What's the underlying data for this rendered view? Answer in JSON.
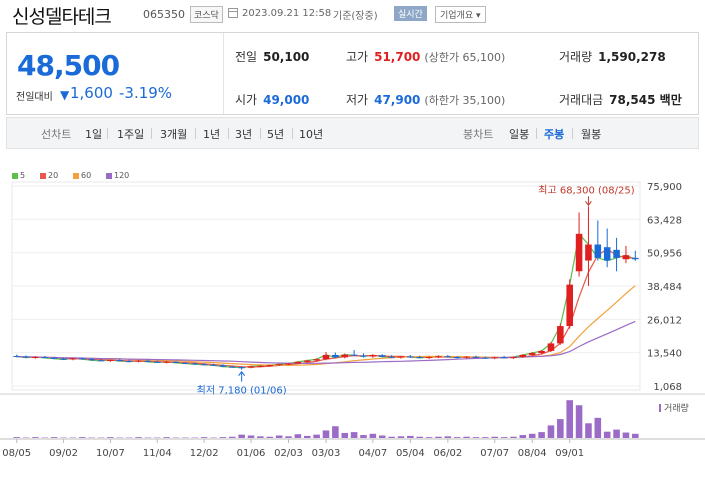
{
  "stock": {
    "name": "신성델타테크",
    "code": "065350",
    "market": "코스닥",
    "datetime": "2023.09.21 12:58",
    "basis": "기준(장중)",
    "realtime_label": "실시간",
    "company_info_label": "기업개요"
  },
  "quote": {
    "price": "48,500",
    "change_label": "전일대비",
    "change_arrow": "▼",
    "change_value": "1,600",
    "change_percent": "-3.19%",
    "prev_close_label": "전일",
    "prev_close": "50,100",
    "high_label": "고가",
    "high": "51,700",
    "upper_limit": "(상한가 65,100)",
    "volume_label": "거래량",
    "volume": "1,590,278",
    "open_label": "시가",
    "open": "49,000",
    "low_label": "저가",
    "low": "47,900",
    "lower_limit": "(하한가 35,100)",
    "amount_label": "거래대금",
    "amount": "78,545 백만"
  },
  "toolbar": {
    "line_label": "선차트",
    "periods": [
      "1일",
      "1주일",
      "3개월",
      "1년",
      "3년",
      "5년",
      "10년"
    ],
    "candle_label": "봉차트",
    "candle_types": [
      "일봉",
      "주봉",
      "월봉"
    ],
    "candle_active": "주봉"
  },
  "colors": {
    "up": "#e02020",
    "down": "#1a6ad8",
    "ma5": "#5cbf4a",
    "ma20": "#e55a4a",
    "ma60": "#f2a23c",
    "ma120": "#9b6bc7"
  },
  "chart_data": {
    "type": "candlestick",
    "moving_averages": [
      {
        "name": "5",
        "color": "#5cbf4a"
      },
      {
        "name": "20",
        "color": "#e55a4a"
      },
      {
        "name": "60",
        "color": "#f2a23c"
      },
      {
        "name": "120",
        "color": "#9b6bc7"
      }
    ],
    "y_ticks": [
      "75,900",
      "63,428",
      "50,956",
      "38,484",
      "26,012",
      "13,540",
      "1,068"
    ],
    "y_range": [
      1068,
      75900
    ],
    "x_ticks": [
      "08/05",
      "09/02",
      "10/07",
      "11/04",
      "12/02",
      "01/06",
      "02/03",
      "03/03",
      "04/07",
      "05/04",
      "06/02",
      "07/07",
      "08/04",
      "09/01"
    ],
    "high_annotation": "최고 68,300 (08/25)",
    "low_annotation": "최저 7,180 (01/06)",
    "volume_label": "거래량",
    "candles": [
      {
        "o": 12300,
        "h": 12800,
        "l": 11800,
        "c": 12100
      },
      {
        "o": 12100,
        "h": 12500,
        "l": 11500,
        "c": 11700
      },
      {
        "o": 11700,
        "h": 12200,
        "l": 11300,
        "c": 11900
      },
      {
        "o": 11900,
        "h": 12300,
        "l": 11400,
        "c": 11600
      },
      {
        "o": 11600,
        "h": 12000,
        "l": 11100,
        "c": 11300
      },
      {
        "o": 11300,
        "h": 11700,
        "l": 10800,
        "c": 11000
      },
      {
        "o": 11000,
        "h": 11600,
        "l": 10700,
        "c": 11400
      },
      {
        "o": 11400,
        "h": 11800,
        "l": 10900,
        "c": 11100
      },
      {
        "o": 11100,
        "h": 11500,
        "l": 10500,
        "c": 10700
      },
      {
        "o": 10700,
        "h": 11200,
        "l": 10300,
        "c": 10500
      },
      {
        "o": 10500,
        "h": 11000,
        "l": 10100,
        "c": 10800
      },
      {
        "o": 10800,
        "h": 11100,
        "l": 10300,
        "c": 10400
      },
      {
        "o": 10400,
        "h": 10900,
        "l": 10000,
        "c": 10200
      },
      {
        "o": 10200,
        "h": 10800,
        "l": 9900,
        "c": 10500
      },
      {
        "o": 10500,
        "h": 10900,
        "l": 10000,
        "c": 10100
      },
      {
        "o": 10100,
        "h": 10500,
        "l": 9700,
        "c": 9900
      },
      {
        "o": 9900,
        "h": 10400,
        "l": 9500,
        "c": 10100
      },
      {
        "o": 10100,
        "h": 10400,
        "l": 9600,
        "c": 9700
      },
      {
        "o": 9700,
        "h": 10100,
        "l": 9300,
        "c": 9500
      },
      {
        "o": 9500,
        "h": 9900,
        "l": 9000,
        "c": 9200
      },
      {
        "o": 9200,
        "h": 9600,
        "l": 8800,
        "c": 9000
      },
      {
        "o": 9000,
        "h": 9400,
        "l": 8600,
        "c": 8800
      },
      {
        "o": 8800,
        "h": 9200,
        "l": 8100,
        "c": 8300
      },
      {
        "o": 8300,
        "h": 8700,
        "l": 7900,
        "c": 8100
      },
      {
        "o": 8100,
        "h": 8500,
        "l": 7180,
        "c": 7900
      },
      {
        "o": 7900,
        "h": 8600,
        "l": 7700,
        "c": 8400
      },
      {
        "o": 8400,
        "h": 8900,
        "l": 8100,
        "c": 8600
      },
      {
        "o": 8600,
        "h": 9100,
        "l": 8300,
        "c": 8900
      },
      {
        "o": 8900,
        "h": 9400,
        "l": 8600,
        "c": 9200
      },
      {
        "o": 9200,
        "h": 9700,
        "l": 8900,
        "c": 9500
      },
      {
        "o": 9500,
        "h": 10300,
        "l": 9300,
        "c": 10100
      },
      {
        "o": 10100,
        "h": 10900,
        "l": 9800,
        "c": 10600
      },
      {
        "o": 10600,
        "h": 11400,
        "l": 10200,
        "c": 11100
      },
      {
        "o": 11100,
        "h": 13800,
        "l": 10700,
        "c": 12700
      },
      {
        "o": 12700,
        "h": 13600,
        "l": 11500,
        "c": 11800
      },
      {
        "o": 11800,
        "h": 13200,
        "l": 11400,
        "c": 12800
      },
      {
        "o": 12800,
        "h": 14500,
        "l": 12200,
        "c": 12500
      },
      {
        "o": 12500,
        "h": 13300,
        "l": 11700,
        "c": 12100
      },
      {
        "o": 12100,
        "h": 12900,
        "l": 11600,
        "c": 12600
      },
      {
        "o": 12600,
        "h": 13000,
        "l": 11800,
        "c": 12000
      },
      {
        "o": 12000,
        "h": 12600,
        "l": 11500,
        "c": 11800
      },
      {
        "o": 11800,
        "h": 12300,
        "l": 11300,
        "c": 12100
      },
      {
        "o": 12100,
        "h": 12700,
        "l": 11600,
        "c": 11900
      },
      {
        "o": 11900,
        "h": 12400,
        "l": 11400,
        "c": 11600
      },
      {
        "o": 11600,
        "h": 12200,
        "l": 11200,
        "c": 11900
      },
      {
        "o": 11900,
        "h": 12500,
        "l": 11500,
        "c": 12200
      },
      {
        "o": 12200,
        "h": 12700,
        "l": 11700,
        "c": 11900
      },
      {
        "o": 11900,
        "h": 12300,
        "l": 11400,
        "c": 11700
      },
      {
        "o": 11700,
        "h": 12200,
        "l": 11300,
        "c": 12000
      },
      {
        "o": 12000,
        "h": 12400,
        "l": 11500,
        "c": 11700
      },
      {
        "o": 11700,
        "h": 12100,
        "l": 11300,
        "c": 11500
      },
      {
        "o": 11500,
        "h": 12000,
        "l": 11100,
        "c": 11800
      },
      {
        "o": 11800,
        "h": 12300,
        "l": 11400,
        "c": 11600
      },
      {
        "o": 11600,
        "h": 12100,
        "l": 11200,
        "c": 11900
      },
      {
        "o": 11900,
        "h": 13000,
        "l": 11600,
        "c": 12700
      },
      {
        "o": 12700,
        "h": 13800,
        "l": 12400,
        "c": 13400
      },
      {
        "o": 13400,
        "h": 14500,
        "l": 13000,
        "c": 14200
      },
      {
        "o": 14200,
        "h": 17500,
        "l": 13800,
        "c": 17000
      },
      {
        "o": 17000,
        "h": 24500,
        "l": 16500,
        "c": 23500
      },
      {
        "o": 23500,
        "h": 41000,
        "l": 22500,
        "c": 39000
      },
      {
        "o": 44000,
        "h": 66000,
        "l": 42000,
        "c": 58000
      },
      {
        "o": 48000,
        "h": 68300,
        "l": 38500,
        "c": 54000
      },
      {
        "o": 54000,
        "h": 63000,
        "l": 48000,
        "c": 49000
      },
      {
        "o": 53000,
        "h": 60000,
        "l": 45500,
        "c": 48000
      },
      {
        "o": 52000,
        "h": 56500,
        "l": 44000,
        "c": 49000
      },
      {
        "o": 48500,
        "h": 53500,
        "l": 47000,
        "c": 50000
      },
      {
        "o": 49000,
        "h": 51700,
        "l": 47900,
        "c": 48500
      }
    ],
    "volumes": [
      0.02,
      0.01,
      0.02,
      0.01,
      0.02,
      0.01,
      0.01,
      0.02,
      0.01,
      0.01,
      0.02,
      0.01,
      0.01,
      0.02,
      0.01,
      0.01,
      0.02,
      0.01,
      0.01,
      0.01,
      0.02,
      0.01,
      0.02,
      0.03,
      0.08,
      0.06,
      0.04,
      0.03,
      0.06,
      0.04,
      0.09,
      0.05,
      0.08,
      0.18,
      0.28,
      0.12,
      0.14,
      0.07,
      0.1,
      0.06,
      0.03,
      0.04,
      0.05,
      0.03,
      0.02,
      0.03,
      0.04,
      0.02,
      0.03,
      0.02,
      0.02,
      0.03,
      0.02,
      0.03,
      0.07,
      0.1,
      0.14,
      0.3,
      0.45,
      0.9,
      0.78,
      0.35,
      0.48,
      0.15,
      0.2,
      0.13,
      0.1
    ]
  }
}
